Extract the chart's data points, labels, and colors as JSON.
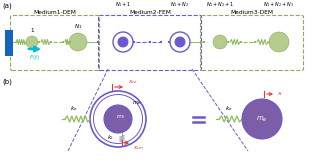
{
  "fig_width": 3.12,
  "fig_height": 1.61,
  "dpi": 100,
  "bg_color": "#ffffff",
  "panel_a_label": "(a)",
  "panel_b_label": "(b)",
  "medium1_label": "Medium1-DEM",
  "medium2_label": "Medium2-FEM",
  "medium3_label": "Medium3-DEM",
  "node_label_1": "1",
  "node_label_N1": "$N_1$",
  "node_label_N1p1": "$N_1+1$",
  "node_label_N1pN2": "$N_1+N_2$",
  "node_label_N1pN2p1": "$N_1+N_2+1$",
  "node_label_N1pN2pN3": "$N_1+N_2+N_3$",
  "force_label": "$F(t)$",
  "node_color": "#b5cc8e",
  "node_edge": "#8faa5a",
  "fem_outer_color": "#6a5acd",
  "fem_inner_fill": "#6a5acd",
  "spring_green": "#8fbc5a",
  "box1_color": "#8faa5a",
  "box2_color": "#6a5acd",
  "box3_color": "#8faa5a",
  "wall_color": "#1565c0",
  "force_color": "#00bcd4",
  "red_color": "#e53935",
  "purple_fill": "#7b5ea7",
  "purple_edge": "#6a5acd",
  "gray_spring": "#aaaaaa",
  "equiv_color": "#6a5acd"
}
